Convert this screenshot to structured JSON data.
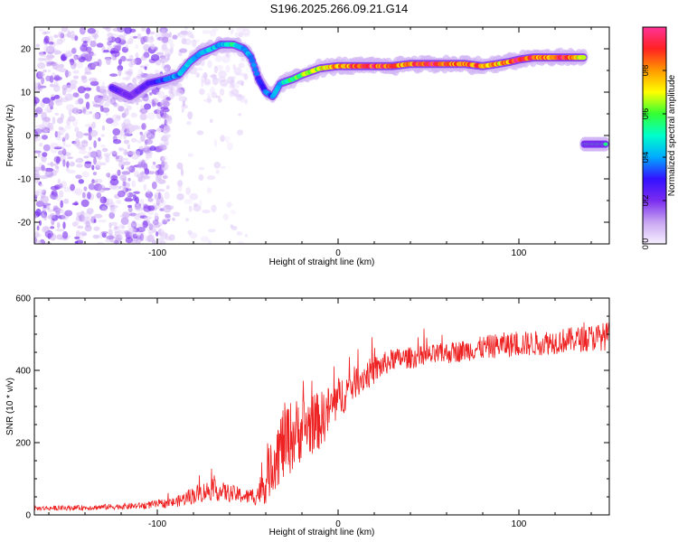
{
  "title": "S196.2025.266.09.21.G14",
  "chart_data": [
    {
      "type": "heatmap",
      "xlabel": "Height of straight line (km)",
      "ylabel": "Frequency (Hz)",
      "xlim": [
        -168,
        150
      ],
      "ylim": [
        -25,
        25
      ],
      "xticks": [
        -100,
        0,
        100
      ],
      "yticks": [
        -20,
        -10,
        0,
        10,
        20
      ],
      "colorbar": {
        "label": "Normalized spectral amplitude",
        "range": [
          0,
          1
        ],
        "ticks": [
          0.0,
          0.2,
          0.4,
          0.6,
          0.8
        ],
        "colors": [
          "#f7f0ff",
          "#c9a6f2",
          "#7a2cf0",
          "#3311ff",
          "#00aaff",
          "#00ffcc",
          "#33ff33",
          "#ffff00",
          "#ff9900",
          "#ff2222",
          "#ff3399"
        ]
      },
      "ridge": [
        [
          -125,
          11,
          0.25
        ],
        [
          -115,
          9,
          0.2
        ],
        [
          -105,
          12,
          0.25
        ],
        [
          -100,
          12.5,
          0.3
        ],
        [
          -95,
          13,
          0.35
        ],
        [
          -88,
          14,
          0.4
        ],
        [
          -82,
          17,
          0.45
        ],
        [
          -76,
          19,
          0.35
        ],
        [
          -70,
          20,
          0.45
        ],
        [
          -65,
          21,
          0.4
        ],
        [
          -58,
          21,
          0.5
        ],
        [
          -52,
          20,
          0.35
        ],
        [
          -48,
          18,
          0.4
        ],
        [
          -44,
          13,
          0.3
        ],
        [
          -40,
          10,
          0.35
        ],
        [
          -36,
          9,
          0.35
        ],
        [
          -32,
          12,
          0.45
        ],
        [
          -25,
          13,
          0.55
        ],
        [
          -20,
          14,
          0.6
        ],
        [
          -10,
          15.5,
          0.7
        ],
        [
          0,
          16,
          0.8
        ],
        [
          10,
          16,
          0.85
        ],
        [
          20,
          16,
          0.9
        ],
        [
          30,
          16,
          0.85
        ],
        [
          40,
          16.5,
          0.8
        ],
        [
          50,
          16.5,
          0.9
        ],
        [
          60,
          16.5,
          0.85
        ],
        [
          70,
          16.5,
          0.8
        ],
        [
          80,
          16,
          0.85
        ],
        [
          88,
          16.5,
          0.75
        ],
        [
          95,
          17,
          0.8
        ],
        [
          100,
          17.5,
          0.9
        ],
        [
          108,
          18,
          0.85
        ],
        [
          115,
          18,
          0.8
        ],
        [
          122,
          18,
          0.9
        ],
        [
          130,
          18,
          0.85
        ],
        [
          136,
          18,
          0.6
        ]
      ],
      "secondary_line": {
        "x_range": [
          136,
          148
        ],
        "y": -2,
        "amplitude": 0.55
      }
    },
    {
      "type": "line",
      "xlabel": "Height of straight line (km)",
      "ylabel": "SNR (10 * v/v)",
      "xlim": [
        -168,
        150
      ],
      "ylim": [
        0,
        600
      ],
      "xticks": [
        -100,
        0,
        100
      ],
      "yticks": [
        0,
        200,
        400,
        600
      ],
      "color": "#ee2222",
      "envelope": {
        "x": [
          -168,
          -140,
          -110,
          -90,
          -80,
          -70,
          -60,
          -50,
          -45,
          -40,
          -35,
          -30,
          -25,
          -20,
          -10,
          0,
          10,
          20,
          30,
          50,
          70,
          90,
          110,
          130,
          150
        ],
        "mean": [
          18,
          20,
          25,
          35,
          55,
          70,
          60,
          50,
          55,
          90,
          160,
          200,
          220,
          240,
          260,
          320,
          370,
          400,
          430,
          440,
          455,
          470,
          475,
          485,
          495
        ],
        "noise": [
          6,
          7,
          9,
          14,
          25,
          30,
          25,
          20,
          30,
          60,
          90,
          110,
          100,
          90,
          80,
          60,
          45,
          40,
          30,
          30,
          30,
          35,
          35,
          35,
          40
        ]
      }
    }
  ]
}
